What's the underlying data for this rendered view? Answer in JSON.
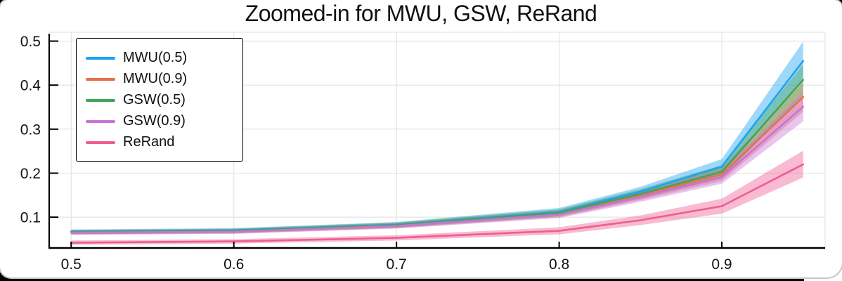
{
  "window": {
    "background": "#000000",
    "surface": "#ffffff"
  },
  "chart_data": {
    "type": "line",
    "title": "Zoomed-in for MWU, GSW, ReRand",
    "xlabel": "",
    "ylabel": "",
    "grid": true,
    "legend_position": "top-left",
    "xlim": [
      0.4865,
      0.9635
    ],
    "ylim": [
      0.03,
      0.52
    ],
    "x_ticks": {
      "values": [
        0.5,
        0.6,
        0.7,
        0.8,
        0.9
      ],
      "labels": [
        "0.5",
        "0.6",
        "0.7",
        "0.8",
        "0.9"
      ]
    },
    "y_ticks": {
      "values": [
        0.1,
        0.2,
        0.3,
        0.4,
        0.5
      ],
      "labels": [
        "0.1",
        "0.2",
        "0.3",
        "0.4",
        "0.5"
      ]
    },
    "x": [
      0.5,
      0.6,
      0.7,
      0.8,
      0.85,
      0.9,
      0.95
    ],
    "band_opacity": 0.42,
    "series": [
      {
        "name": "MWU(0.5)",
        "color": "#1BA3F5",
        "y": [
          0.067,
          0.07,
          0.083,
          0.112,
          0.158,
          0.215,
          0.455
        ],
        "lo": [
          0.062,
          0.065,
          0.077,
          0.104,
          0.147,
          0.2,
          0.416
        ],
        "hi": [
          0.072,
          0.075,
          0.089,
          0.121,
          0.169,
          0.232,
          0.499
        ]
      },
      {
        "name": "MWU(0.9)",
        "color": "#E8704B",
        "y": [
          0.066,
          0.068,
          0.081,
          0.108,
          0.15,
          0.197,
          0.373
        ],
        "lo": [
          0.061,
          0.063,
          0.075,
          0.1,
          0.139,
          0.182,
          0.34
        ],
        "hi": [
          0.071,
          0.073,
          0.087,
          0.116,
          0.161,
          0.212,
          0.406
        ]
      },
      {
        "name": "GSW(0.5)",
        "color": "#43A457",
        "y": [
          0.066,
          0.069,
          0.082,
          0.11,
          0.153,
          0.203,
          0.412
        ],
        "lo": [
          0.061,
          0.064,
          0.076,
          0.102,
          0.142,
          0.188,
          0.378
        ],
        "hi": [
          0.071,
          0.074,
          0.088,
          0.118,
          0.164,
          0.218,
          0.447
        ]
      },
      {
        "name": "GSW(0.9)",
        "color": "#C873D6",
        "y": [
          0.065,
          0.067,
          0.08,
          0.106,
          0.146,
          0.191,
          0.351
        ],
        "lo": [
          0.06,
          0.062,
          0.074,
          0.098,
          0.135,
          0.176,
          0.318
        ],
        "hi": [
          0.07,
          0.072,
          0.086,
          0.114,
          0.157,
          0.206,
          0.384
        ]
      },
      {
        "name": "ReRand",
        "color": "#EF5D92",
        "y": [
          0.042,
          0.045,
          0.053,
          0.069,
          0.093,
          0.125,
          0.22
        ],
        "lo": [
          0.037,
          0.04,
          0.047,
          0.061,
          0.082,
          0.108,
          0.19
        ],
        "hi": [
          0.047,
          0.05,
          0.059,
          0.077,
          0.104,
          0.142,
          0.251
        ]
      }
    ]
  }
}
